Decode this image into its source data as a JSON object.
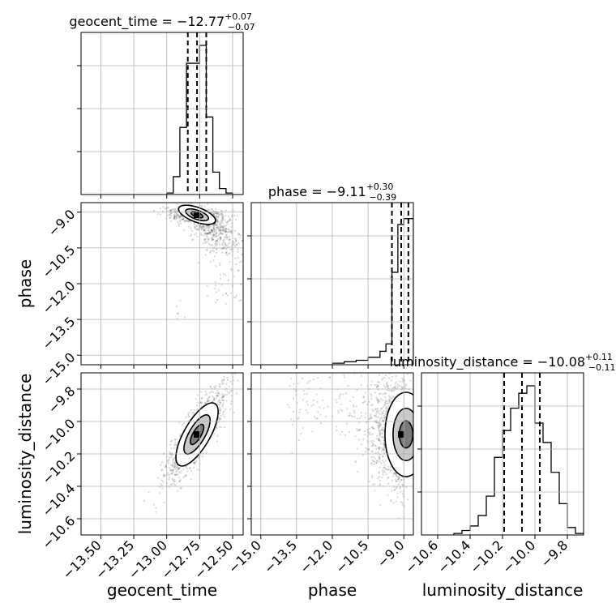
{
  "chart_data": {
    "type": "scatter",
    "kind": "corner plot",
    "parameters": [
      {
        "key": "geocent_time",
        "label": "geocent_time",
        "title": {
          "main": "geocent_time = −12.77",
          "sup": "+0.07",
          "sub": "−0.07"
        },
        "median": -12.77,
        "quantiles": [
          -12.84,
          -12.77,
          -12.7
        ],
        "range": [
          -13.65,
          -12.42
        ],
        "ticks": [
          -13.5,
          -13.25,
          -13.0,
          -12.75,
          -12.5
        ],
        "tick_labels": [
          "−13.50",
          "−13.25",
          "−13.00",
          "−12.75",
          "−12.50"
        ],
        "hist_edges": [
          -13.0,
          -12.95,
          -12.9,
          -12.85,
          -12.8,
          -12.75,
          -12.7,
          -12.65,
          -12.6,
          -12.55,
          -12.5
        ],
        "hist_counts": [
          0.01,
          0.12,
          0.45,
          0.88,
          0.88,
          1.0,
          0.52,
          0.15,
          0.04,
          0.01
        ]
      },
      {
        "key": "phase",
        "label": "phase",
        "title": {
          "main": "phase = −9.11",
          "sup": "+0.30",
          "sub": "−0.39"
        },
        "median": -9.11,
        "quantiles": [
          -9.5,
          -9.11,
          -8.81
        ],
        "range": [
          -15.4,
          -8.6
        ],
        "ticks": [
          -15.0,
          -13.5,
          -12.0,
          -10.5,
          -9.0
        ],
        "tick_labels": [
          "−15.0",
          "−13.5",
          "−12.0",
          "−10.5",
          "−9.0"
        ],
        "hist_edges": [
          -12.0,
          -11.5,
          -11.0,
          -10.5,
          -10.0,
          -9.75,
          -9.5,
          -9.25,
          -9.0,
          -8.75,
          -8.6
        ],
        "hist_counts": [
          0.01,
          0.02,
          0.03,
          0.05,
          0.09,
          0.14,
          0.62,
          0.94,
          0.98,
          0.98
        ],
        "peak_count": 1.0
      },
      {
        "key": "luminosity_distance",
        "label": "luminosity_distance",
        "title": {
          "main": "luminosity_distance = −10.08",
          "sup": "+0.11",
          "sub": "−0.11"
        },
        "median": -10.08,
        "quantiles": [
          -10.19,
          -10.08,
          -9.97
        ],
        "range": [
          -10.7,
          -9.7
        ],
        "ticks": [
          -10.6,
          -10.4,
          -10.2,
          -10.0,
          -9.8
        ],
        "tick_labels": [
          "−10.6",
          "−10.4",
          "−10.2",
          "−10.0",
          "−9.8"
        ],
        "hist_edges": [
          -10.5,
          -10.45,
          -10.4,
          -10.35,
          -10.3,
          -10.25,
          -10.2,
          -10.15,
          -10.1,
          -10.05,
          -10.0,
          -9.95,
          -9.9,
          -9.85,
          -9.8,
          -9.75,
          -9.7
        ],
        "hist_counts": [
          0.01,
          0.03,
          0.06,
          0.13,
          0.26,
          0.52,
          0.7,
          0.85,
          0.95,
          1.0,
          0.75,
          0.62,
          0.42,
          0.21,
          0.05,
          0.01
        ]
      }
    ],
    "pairs": [
      {
        "x": "geocent_time",
        "y": "phase",
        "center": [
          -12.77,
          -9.11
        ]
      },
      {
        "x": "geocent_time",
        "y": "luminosity_distance",
        "center": [
          -12.77,
          -10.08
        ]
      },
      {
        "x": "phase",
        "y": "luminosity_distance",
        "center": [
          -9.11,
          -10.08
        ]
      }
    ],
    "xlabels": [
      "geocent_time",
      "phase",
      "luminosity_distance"
    ],
    "ylabels": [
      "phase",
      "luminosity_distance"
    ],
    "grid": true
  }
}
